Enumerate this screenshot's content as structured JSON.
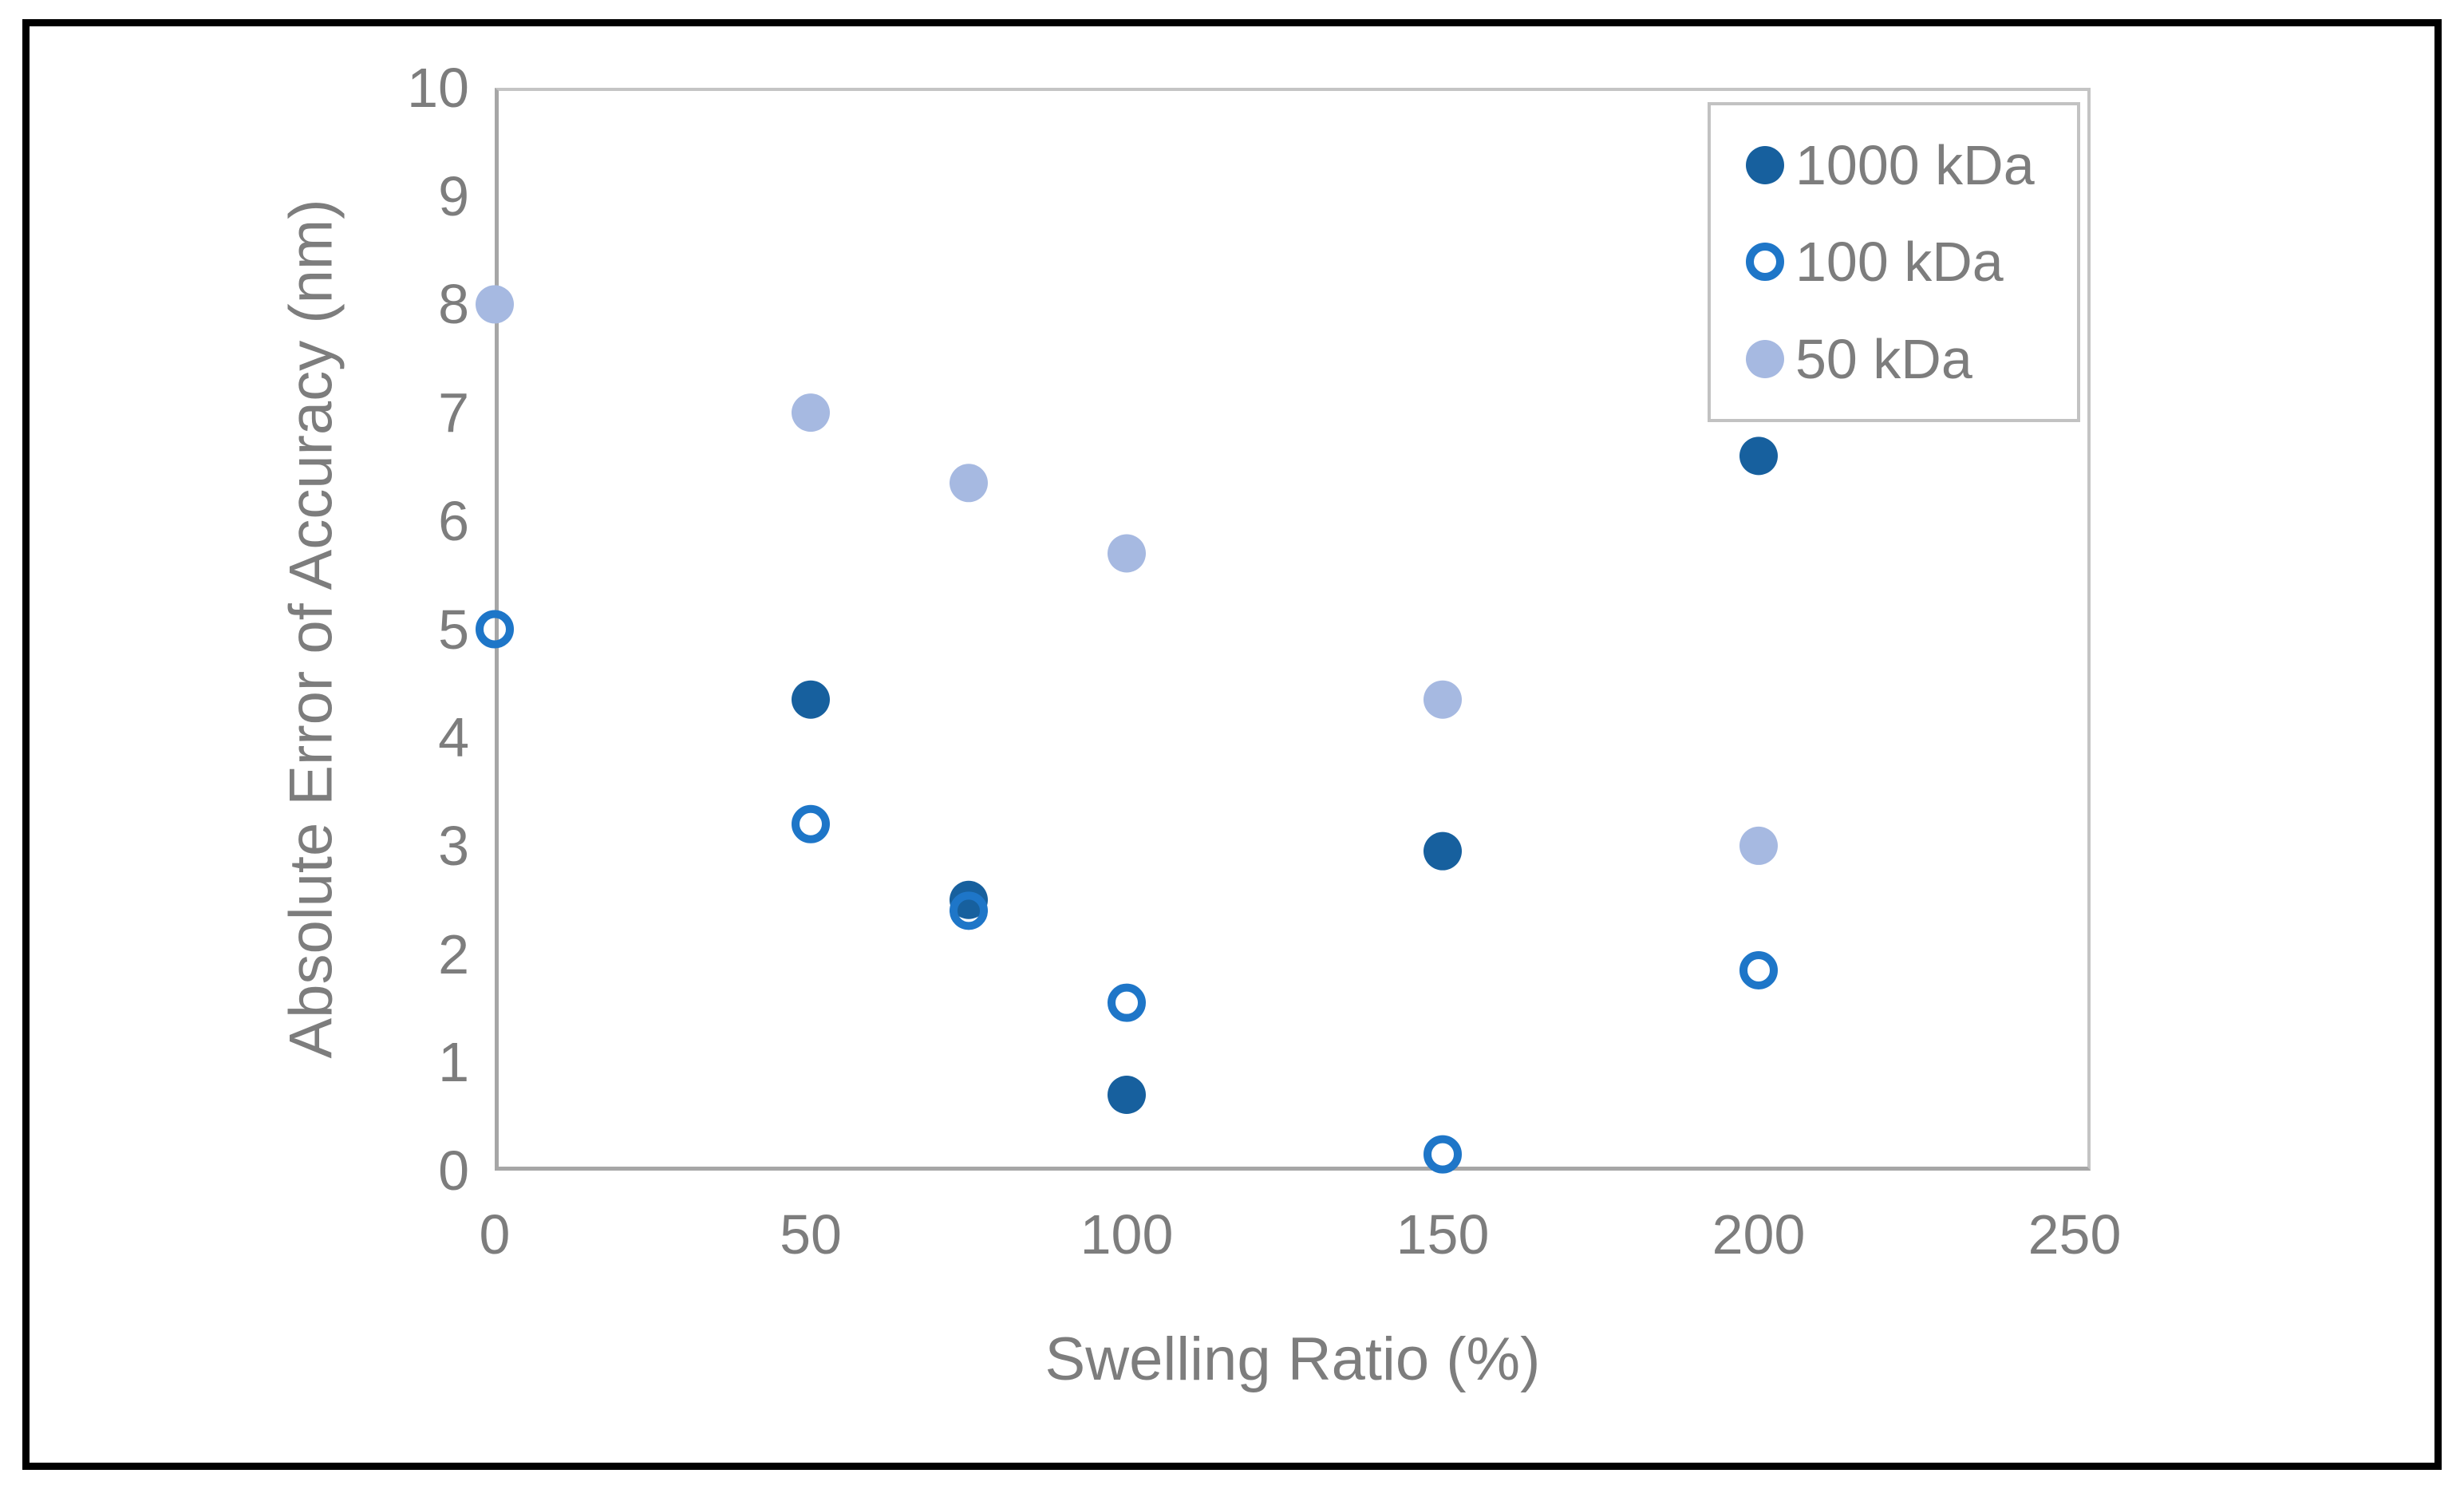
{
  "figure": {
    "background": "#ffffff",
    "border_color": "#000000"
  },
  "axes": {
    "x": {
      "title": "Swelling Ratio (%)",
      "min": 0,
      "max": 250,
      "tick_interval": 50,
      "ticks": [
        "0",
        "50",
        "100",
        "150",
        "200",
        "250"
      ]
    },
    "y": {
      "title": "Absolute Error of Accuracy (nm)",
      "min": 0,
      "max": 10,
      "tick_interval": 1,
      "ticks": [
        "0",
        "1",
        "2",
        "3",
        "4",
        "5",
        "6",
        "7",
        "8",
        "9",
        "10"
      ]
    }
  },
  "legend": {
    "position": "top-right-inside-plot",
    "items": [
      {
        "label": "1000 kDa",
        "marker": "filled-circle",
        "color": "#17609E"
      },
      {
        "label": "100 kDa",
        "marker": "open-circle",
        "color": "#1E76C8"
      },
      {
        "label": "50 kDa",
        "marker": "filled-circle",
        "color": "#A6B9E1"
      }
    ]
  },
  "chart_data": {
    "type": "scatter",
    "title": "",
    "xlabel": "Swelling Ratio (%)",
    "ylabel": "Absolute Error of Accuracy (nm)",
    "xlim": [
      0,
      250
    ],
    "ylim": [
      0,
      10
    ],
    "grid": false,
    "legend_position": "top-right inside plot",
    "series": [
      {
        "name": "1000 kDa",
        "marker": "filled-circle",
        "color": "#17609E",
        "points": [
          [
            50,
            4.35
          ],
          [
            75,
            2.5
          ],
          [
            100,
            0.7
          ],
          [
            150,
            2.95
          ],
          [
            200,
            6.6
          ]
        ]
      },
      {
        "name": "100 kDa",
        "marker": "open-circle",
        "color": "#1E76C8",
        "points": [
          [
            0,
            5.0
          ],
          [
            50,
            3.2
          ],
          [
            75,
            2.4
          ],
          [
            100,
            1.55
          ],
          [
            150,
            0.15
          ],
          [
            200,
            1.85
          ]
        ]
      },
      {
        "name": "50 kDa",
        "marker": "filled-circle",
        "color": "#A6B9E1",
        "points": [
          [
            0,
            8.0
          ],
          [
            50,
            7.0
          ],
          [
            75,
            6.35
          ],
          [
            100,
            5.7
          ],
          [
            150,
            4.35
          ],
          [
            200,
            3.0
          ]
        ]
      }
    ]
  },
  "colors": {
    "axis_line": "#A6A6A6",
    "plot_border": "#C4C4C4",
    "tick_text": "#7D7D7D",
    "legend_border": "#C2C2C2"
  }
}
